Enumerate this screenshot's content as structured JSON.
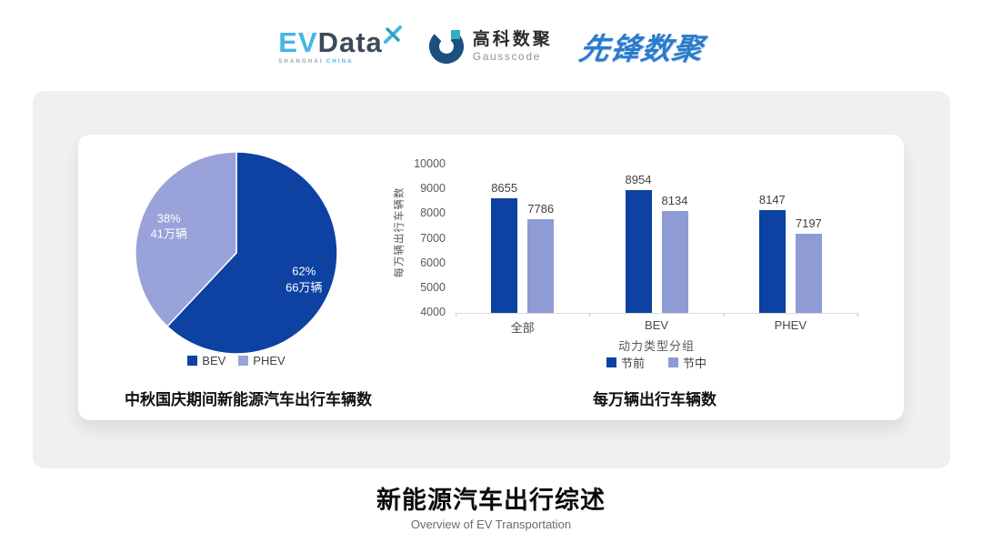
{
  "header": {
    "logos": {
      "evdata": {
        "ev": "EV",
        "data": "Data",
        "sub_left": "SHANGHAI",
        "sub_right": "CHINA"
      },
      "gausscode": {
        "cn": "高科数聚",
        "en": "Gausscode"
      },
      "pioneer": {
        "text": "先锋数聚"
      }
    }
  },
  "colors": {
    "primary_dark_blue": "#0D41A2",
    "bar_light_blue": "#8F9BD4",
    "pie_light_blue": "#99A3DA",
    "panel_gray": "#F0F0F0",
    "axis_gray": "#D9D9D9",
    "evdata_cyan": "#45B5E6",
    "evdata_navy": "#3D4A59",
    "gauss_blue": "#1B5080",
    "gauss_teal": "#2FAFC0",
    "pioneer_blue": "#2B7BCB"
  },
  "chart_data": [
    {
      "type": "pie",
      "title": "中秋国庆期间新能源汽车出行车辆数",
      "start_angle_deg": 0,
      "direction": "clockwise",
      "slices": [
        {
          "label": "BEV",
          "percent": 62,
          "value_label": "66万辆",
          "color": "#0D41A2"
        },
        {
          "label": "PHEV",
          "percent": 38,
          "value_label": "41万辆",
          "color": "#99A3DA"
        }
      ],
      "legend_position": "bottom"
    },
    {
      "type": "bar",
      "title": "每万辆出行车辆数",
      "categories": [
        "全部",
        "BEV",
        "PHEV"
      ],
      "series": [
        {
          "name": "节前",
          "values": [
            8655,
            8954,
            8147
          ],
          "color": "#0D41A2"
        },
        {
          "name": "节中",
          "values": [
            7786,
            8134,
            7197
          ],
          "color": "#8F9BD4"
        }
      ],
      "xlabel": "动力类型分组",
      "ylabel": "每万辆出行车辆数",
      "ylim": [
        4000,
        10000
      ],
      "ytick_step": 1000,
      "yticks": [
        4000,
        5000,
        6000,
        7000,
        8000,
        9000,
        10000
      ],
      "grid": false,
      "bar_value_labels": true,
      "legend_position": "bottom"
    }
  ],
  "footer": {
    "title": "新能源汽车出行综述",
    "subtitle": "Overview of EV Transportation"
  }
}
